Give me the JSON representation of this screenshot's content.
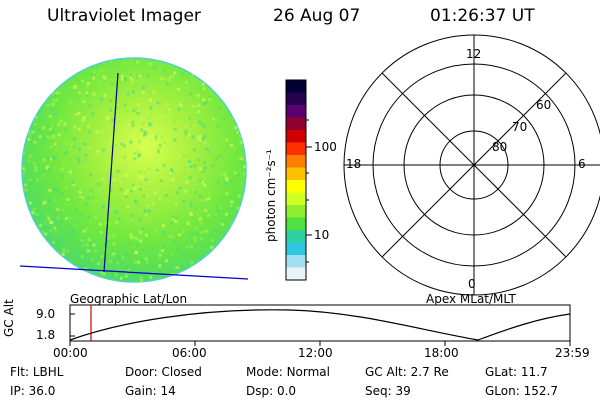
{
  "header": {
    "title": "Ultraviolet Imager",
    "date": "26 Aug 07",
    "time": "01:26:37 UT"
  },
  "colorbar": {
    "label": "photon cm⁻²s⁻¹",
    "ticks": [
      "100",
      "10"
    ],
    "colors": [
      "#000033",
      "#2a0050",
      "#5a0070",
      "#900030",
      "#d00000",
      "#ff3000",
      "#ff8000",
      "#ffc000",
      "#ffff00",
      "#d0ff20",
      "#90ee30",
      "#50e040",
      "#30d0a0",
      "#30c8e0",
      "#a0e0f0",
      "#e8f4f8"
    ]
  },
  "left_panel": {
    "label": "Geographic Lat/Lon",
    "disk_color": "#7cf03a",
    "track_color": "#0000cc"
  },
  "polar_plot": {
    "label": "Apex MLat/MLT",
    "mlt_labels": {
      "top": "12",
      "right": "6",
      "bottom": "0",
      "left": "18"
    },
    "lat_labels": [
      "60",
      "70",
      "80"
    ]
  },
  "altitude_plot": {
    "ylabel": "GC Alt",
    "yticks": [
      "9.0",
      "1.8"
    ],
    "xticks": [
      "00:00",
      "06:00",
      "12:00",
      "18:00",
      "23:59"
    ],
    "marker_color": "#cc0000"
  },
  "info": {
    "row1": [
      {
        "label": "Flt:",
        "value": "LBHL"
      },
      {
        "label": "Door:",
        "value": "Closed"
      },
      {
        "label": "Mode:",
        "value": "Normal"
      },
      {
        "label": "GC Alt:",
        "value": "2.7 Re"
      },
      {
        "label": "GLat:",
        "value": "11.7"
      }
    ],
    "row2": [
      {
        "label": "IP:",
        "value": "36.0"
      },
      {
        "label": "Gain:",
        "value": "14"
      },
      {
        "label": "Dsp:",
        "value": "0.0"
      },
      {
        "label": "Seq:",
        "value": "39"
      },
      {
        "label": "GLon:",
        "value": "152.7"
      }
    ]
  }
}
